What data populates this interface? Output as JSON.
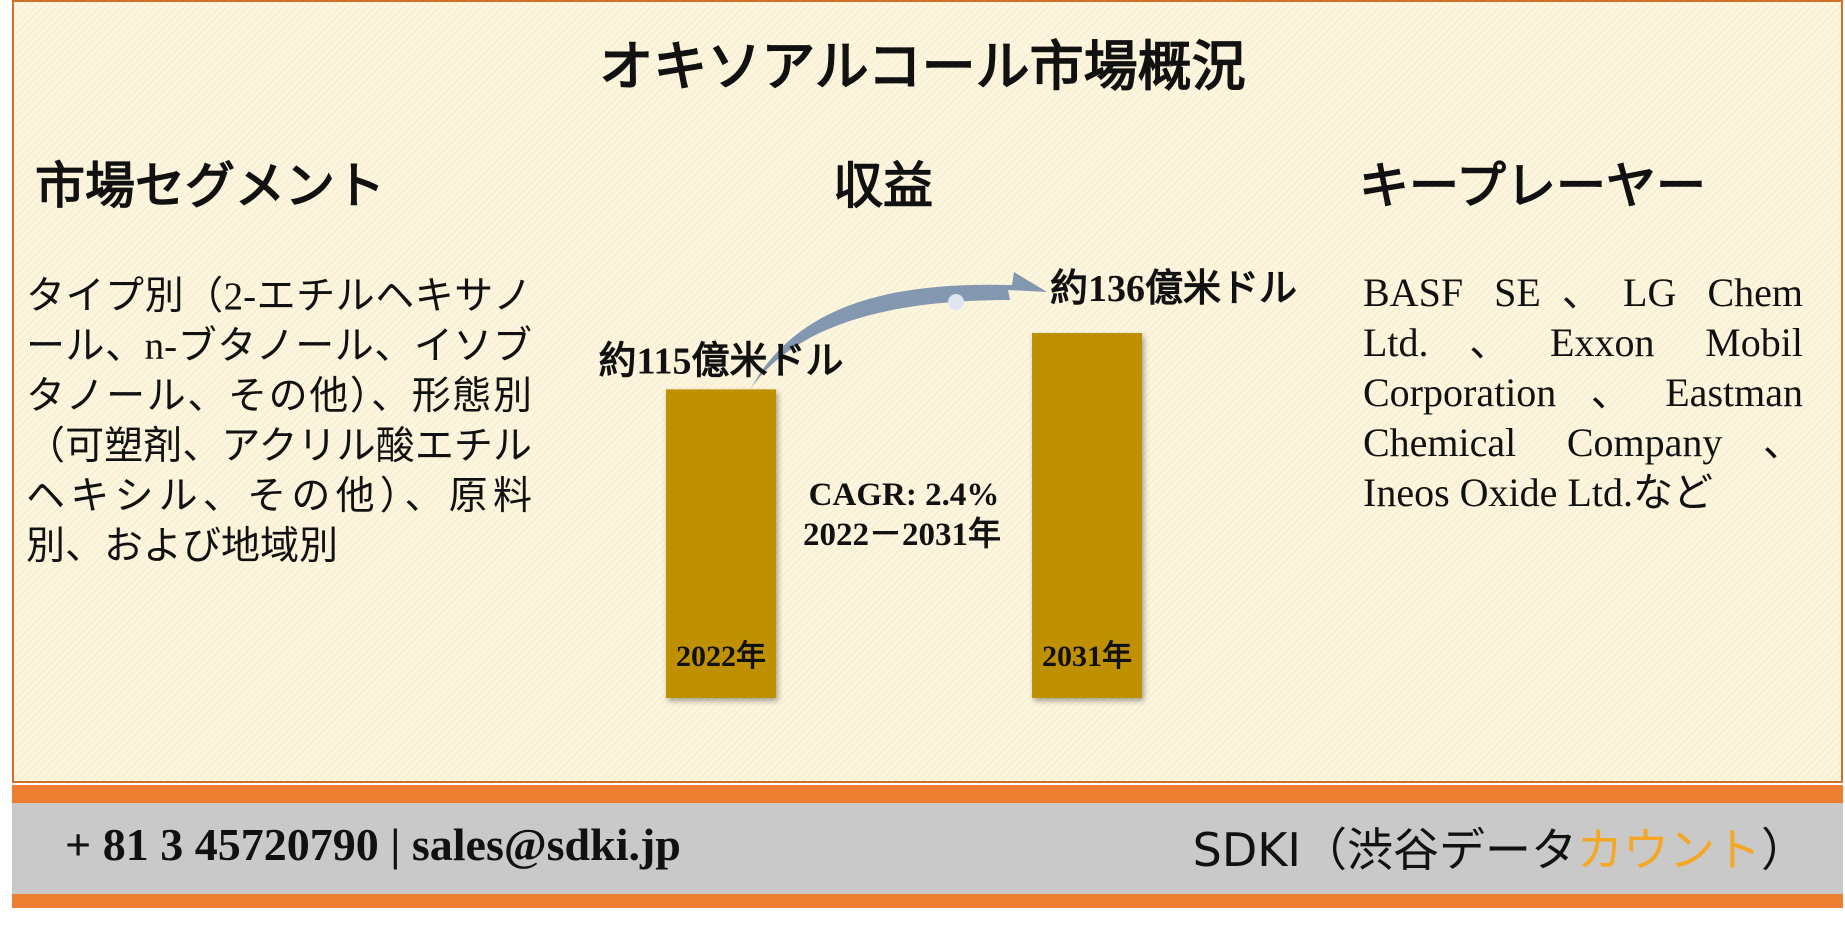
{
  "header": {
    "title": "オキソアルコール市場概況"
  },
  "segments": {
    "heading": "市場セグメント",
    "text": "タイプ別（2-エチルヘキサノール、n-ブタノール、イソブタノール、その他）、形態別（可塑剤、アクリル酸エチルヘキシル、その他）、原料別、および地域別"
  },
  "revenue": {
    "heading": "収益",
    "bars": [
      {
        "label": "2022年",
        "value": 115,
        "value_label": "約115億米ドル"
      },
      {
        "label": "2031年",
        "value": 136,
        "value_label": "約136億米ドル"
      }
    ],
    "cagr": "CAGR: 2.4%",
    "period": "2022－2031年",
    "bar_color": "#bf9000"
  },
  "players": {
    "heading": "キープレーヤー",
    "text": "BASF SE、LG Chem Ltd.、Exxon Mobil Corporation、Eastman Chemical Company、Ineos Oxide Ltd.など"
  },
  "footer": {
    "contact": "+ 81 3 45720790 | sales@sdki.jp",
    "brand": [
      "SDKI（渋谷データ",
      "カウント",
      "）"
    ]
  }
}
